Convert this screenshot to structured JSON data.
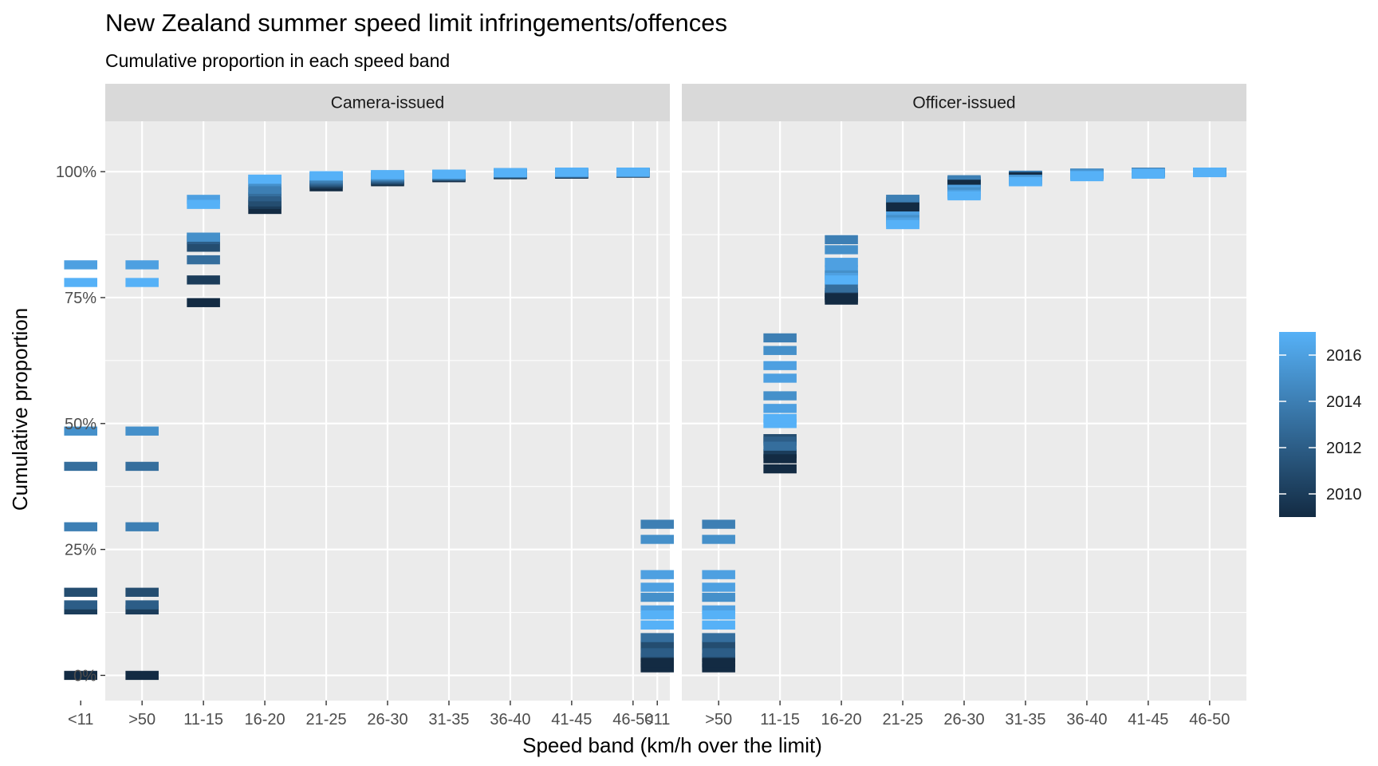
{
  "chart_data": {
    "type": "tile",
    "title": "New Zealand summer speed limit infringements/offences",
    "subtitle": "Cumulative proportion in each speed band",
    "xlabel": "Speed band (km/h over the limit)",
    "ylabel": "Cumulative proportion",
    "ylim": [
      -0.05,
      1.1
    ],
    "y_ticks": [
      0,
      0.25,
      0.5,
      0.75,
      1.0
    ],
    "y_tick_labels": [
      "0%",
      "25%",
      "50%",
      "75%",
      "100%"
    ],
    "categories": [
      "<11",
      ">50",
      "11-15",
      "16-20",
      "21-25",
      "26-30",
      "31-35",
      "36-40",
      "41-45",
      "46-50"
    ],
    "grid": true,
    "legend": {
      "position": "right",
      "min": 2009,
      "max": 2017,
      "breaks": [
        2010,
        2012,
        2014,
        2016
      ],
      "low_color": "#132B43",
      "high_color": "#56B1F7"
    },
    "panels": [
      {
        "strip": "Camera-issued",
        "series": [
          {
            "year": 2009,
            "values": [
              0.0,
              0.0,
              0.74,
              0.925,
              0.97,
              0.98,
              0.988,
              0.994,
              0.995,
              0.997
            ]
          },
          {
            "year": 2010,
            "values": [
              0.13,
              0.13,
              0.785,
              0.935,
              0.975,
              0.982,
              0.99,
              0.995,
              0.996,
              0.998
            ]
          },
          {
            "year": 2011,
            "values": [
              0.165,
              0.165,
              0.85,
              0.94,
              0.978,
              0.984,
              0.99,
              0.996,
              0.996,
              0.998
            ]
          },
          {
            "year": 2012,
            "values": [
              0.14,
              0.14,
              0.865,
              0.95,
              0.98,
              0.986,
              0.992,
              0.996,
              0.997,
              0.998
            ]
          },
          {
            "year": 2013,
            "values": [
              0.415,
              0.415,
              0.825,
              0.96,
              0.983,
              0.988,
              0.992,
              0.997,
              0.997,
              0.998
            ]
          },
          {
            "year": 2014,
            "values": [
              0.295,
              0.295,
              0.87,
              0.965,
              0.986,
              0.99,
              0.993,
              0.997,
              0.998,
              0.999
            ]
          },
          {
            "year": 2015,
            "values": [
              0.485,
              0.485,
              0.87,
              0.98,
              0.99,
              0.992,
              0.994,
              0.998,
              0.998,
              0.999
            ]
          },
          {
            "year": 2016,
            "values": [
              0.815,
              0.815,
              0.945,
              0.985,
              0.992,
              0.994,
              0.995,
              0.998,
              0.999,
              0.999
            ]
          },
          {
            "year": 2017,
            "values": [
              0.78,
              0.78,
              0.935,
              0.985,
              0.992,
              0.994,
              0.995,
              0.998,
              0.999,
              0.999
            ]
          }
        ]
      },
      {
        "strip": "Officer-issued",
        "series": [
          {
            "year": 2009,
            "values": [
              0.015,
              0.015,
              0.41,
              0.745,
              0.93,
              0.975,
              0.99,
              0.995,
              0.998,
              0.999
            ]
          },
          {
            "year": 2010,
            "values": [
              0.035,
              0.035,
              0.44,
              0.755,
              0.935,
              0.978,
              0.99,
              0.996,
              0.998,
              0.999
            ]
          },
          {
            "year": 2011,
            "values": [
              0.06,
              0.06,
              0.47,
              0.76,
              0.94,
              0.98,
              0.991,
              0.996,
              0.998,
              0.999
            ]
          },
          {
            "year": 2012,
            "values": [
              0.045,
              0.045,
              0.465,
              0.755,
              0.94,
              0.98,
              0.992,
              0.996,
              0.998,
              0.999
            ]
          },
          {
            "year": 2013,
            "values": [
              0.075,
              0.075,
              0.455,
              0.77,
              0.945,
              0.982,
              0.992,
              0.997,
              0.998,
              0.999
            ]
          },
          {
            "year": 2014,
            "values": [
              0.3,
              0.3,
              0.67,
              0.865,
              0.945,
              0.984,
              0.993,
              0.997,
              0.999,
              0.999
            ]
          },
          {
            "year": 2015,
            "values": [
              0.27,
              0.27,
              0.645,
              0.845,
              0.925,
              0.97,
              0.99,
              0.997,
              0.998,
              0.999
            ]
          },
          {
            "year": 2016,
            "values": [
              0.2,
              0.2,
              0.615,
              0.82,
              0.915,
              0.96,
              0.985,
              0.995,
              0.998,
              0.999
            ]
          },
          {
            "year": 2017,
            "values": [
              0.1,
              0.1,
              0.5,
              0.785,
              0.895,
              0.955,
              0.98,
              0.99,
              0.995,
              0.998
            ]
          },
          {
            "year": 2009,
            "values": [
              0.025,
              0.025,
              0.43,
              0.75,
              0.93,
              0.975,
              0.99,
              0.995,
              0.998,
              0.999
            ]
          },
          {
            "year": 2016,
            "values": [
              0.175,
              0.175,
              0.59,
              0.805,
              0.91,
              0.965,
              0.985,
              0.995,
              0.998,
              0.999
            ]
          },
          {
            "year": 2015,
            "values": [
              0.155,
              0.155,
              0.555,
              0.795,
              0.905,
              0.96,
              0.984,
              0.994,
              0.997,
              0.999
            ]
          },
          {
            "year": 2016,
            "values": [
              0.13,
              0.13,
              0.53,
              0.79,
              0.9,
              0.955,
              0.982,
              0.993,
              0.997,
              0.999
            ]
          },
          {
            "year": 2017,
            "values": [
              0.12,
              0.12,
              0.51,
              0.785,
              0.895,
              0.952,
              0.98,
              0.992,
              0.996,
              0.999
            ]
          }
        ]
      }
    ]
  }
}
